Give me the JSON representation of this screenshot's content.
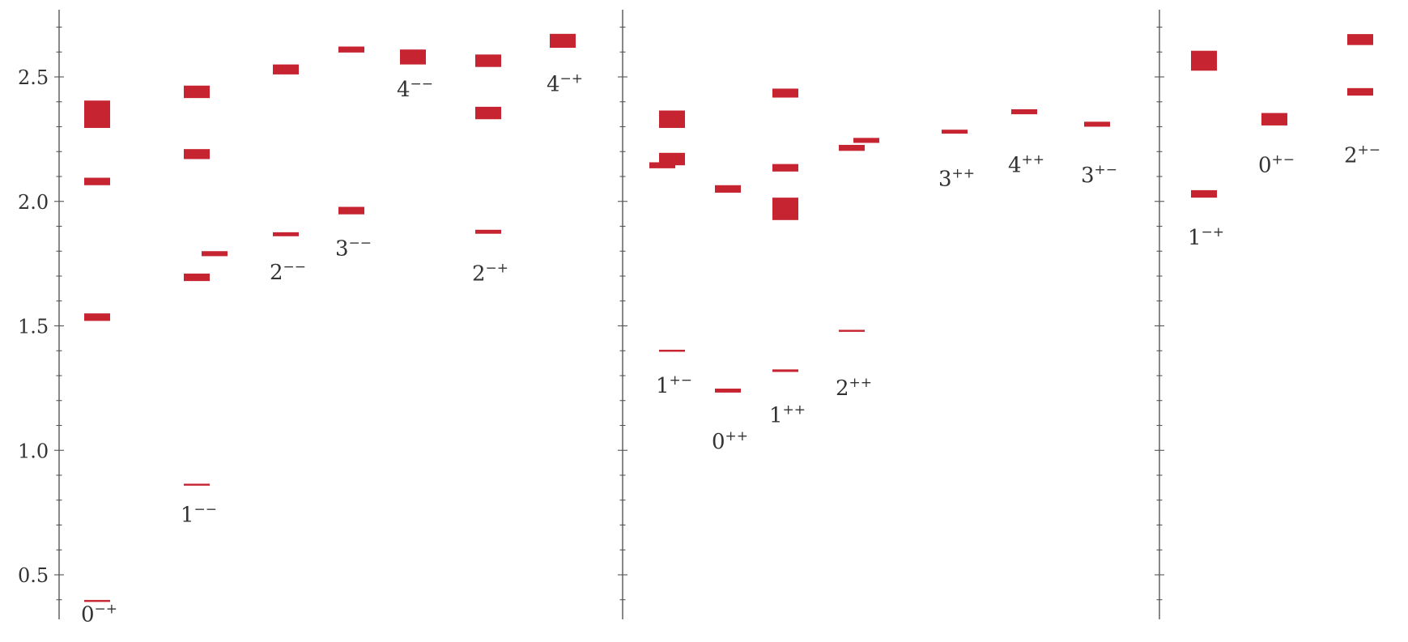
{
  "chart_data": {
    "type": "spectrum",
    "title": "",
    "xlabel": "",
    "ylabel": "",
    "ylim": [
      0.33,
      2.78
    ],
    "yticks": [
      0.5,
      1.0,
      1.5,
      2.0,
      2.5
    ],
    "ytick_labels": [
      "0.5",
      "1.0",
      "1.5",
      "2.0",
      "2.5"
    ],
    "grid": false,
    "legend": "none",
    "mark_color": "#c62430",
    "panels": [
      {
        "channels": [
          {
            "label_base": "0",
            "label_sup": "−+",
            "label_at": 0.345,
            "states": [
              {
                "mass": 0.395,
                "error": 0.002
              },
              {
                "mass": 1.535,
                "error": 0.015
              },
              {
                "mass": 2.08,
                "error": 0.015
              },
              {
                "mass": 2.35,
                "error": 0.055
              }
            ]
          },
          {
            "label_base": "1",
            "label_sup": "−−",
            "label_at": 0.745,
            "states": [
              {
                "mass": 0.862,
                "error": 0.003
              },
              {
                "mass": 1.695,
                "error": 0.015
              },
              {
                "mass": 2.19,
                "error": 0.02
              },
              {
                "mass": 2.44,
                "error": 0.025
              }
            ]
          },
          {
            "label_base": "2",
            "label_sup": "−−",
            "label_at": 1.72,
            "states": [
              {
                "mass": 1.868,
                "error": 0.008
              },
              {
                "mass": 2.53,
                "error": 0.02
              }
            ]
          },
          {
            "label_base": "3",
            "label_sup": "−−",
            "label_at": 1.815,
            "states": [
              {
                "mass": 1.963,
                "error": 0.015
              },
              {
                "mass": 2.61,
                "error": 0.012
              }
            ]
          },
          {
            "label_base": "4",
            "label_sup": "−−",
            "label_at": 2.455,
            "states": [
              {
                "mass": 2.58,
                "error": 0.03
              }
            ]
          },
          {
            "label_base": "2",
            "label_sup": "−+",
            "label_at": 1.715,
            "states": [
              {
                "mass": 1.878,
                "error": 0.008
              },
              {
                "mass": 2.355,
                "error": 0.025
              },
              {
                "mass": 2.565,
                "error": 0.025
              }
            ]
          },
          {
            "label_base": "4",
            "label_sup": "−+",
            "label_at": 2.475,
            "states": [
              {
                "mass": 2.645,
                "error": 0.028
              }
            ]
          }
        ],
        "extra_states": [
          {
            "mass": 1.79,
            "error": 0.01
          }
        ]
      },
      {
        "channels": [
          {
            "label_base": "1",
            "label_sup": "+−",
            "label_at": 1.265,
            "states": [
              {
                "mass": 1.4,
                "error": 0.004
              },
              {
                "mass": 2.17,
                "error": 0.025
              },
              {
                "mass": 2.33,
                "error": 0.035
              }
            ]
          },
          {
            "label_base": "0",
            "label_sup": "++",
            "label_at": 1.04,
            "states": [
              {
                "mass": 1.24,
                "error": 0.008
              },
              {
                "mass": 2.05,
                "error": 0.015
              }
            ]
          },
          {
            "label_base": "1",
            "label_sup": "++",
            "label_at": 1.145,
            "states": [
              {
                "mass": 1.32,
                "error": 0.005
              },
              {
                "mass": 1.97,
                "error": 0.045
              },
              {
                "mass": 2.135,
                "error": 0.015
              },
              {
                "mass": 2.435,
                "error": 0.018
              }
            ]
          },
          {
            "label_base": "2",
            "label_sup": "++",
            "label_at": 1.255,
            "states": [
              {
                "mass": 1.48,
                "error": 0.004
              },
              {
                "mass": 2.215,
                "error": 0.012
              }
            ]
          },
          {
            "label_base": "3",
            "label_sup": "++",
            "label_at": 2.095,
            "states": [
              {
                "mass": 2.28,
                "error": 0.008
              }
            ]
          },
          {
            "label_base": "4",
            "label_sup": "++",
            "label_at": 2.15,
            "states": [
              {
                "mass": 2.36,
                "error": 0.01
              }
            ]
          },
          {
            "label_base": "3",
            "label_sup": "+−",
            "label_at": 2.11,
            "states": [
              {
                "mass": 2.31,
                "error": 0.01
              }
            ]
          }
        ],
        "extra_states": [
          {
            "mass": 2.145,
            "error": 0.012
          },
          {
            "mass": 2.245,
            "error": 0.01
          }
        ]
      },
      {
        "channels": [
          {
            "label_base": "1",
            "label_sup": "−+",
            "label_at": 1.86,
            "states": [
              {
                "mass": 2.03,
                "error": 0.015
              },
              {
                "mass": 2.565,
                "error": 0.04
              }
            ]
          },
          {
            "label_base": "0",
            "label_sup": "+−",
            "label_at": 2.15,
            "states": [
              {
                "mass": 2.33,
                "error": 0.025
              }
            ]
          },
          {
            "label_base": "2",
            "label_sup": "+−",
            "label_at": 2.19,
            "states": [
              {
                "mass": 2.44,
                "error": 0.015
              },
              {
                "mass": 2.65,
                "error": 0.022
              }
            ]
          }
        ],
        "extra_states": []
      }
    ]
  }
}
